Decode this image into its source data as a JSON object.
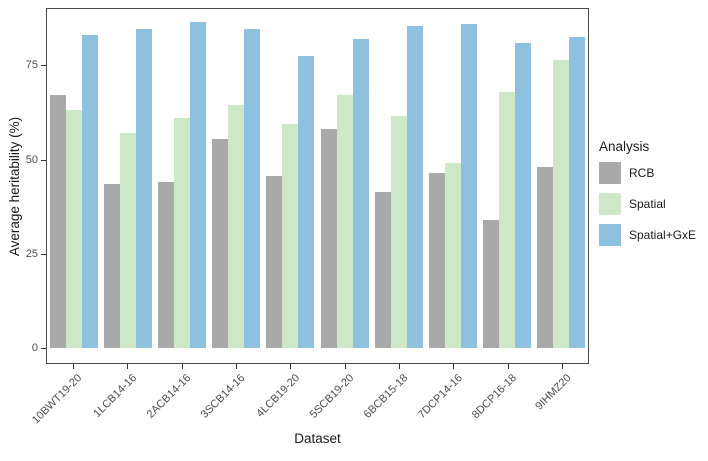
{
  "chart_data": {
    "type": "bar",
    "title": "",
    "xlabel": "Dataset",
    "ylabel": "Average heritability (%)",
    "legend_title": "Analysis",
    "legend_position": "right",
    "grid": false,
    "ylim": [
      0,
      90
    ],
    "y_ticks": [
      0,
      25,
      50,
      75
    ],
    "categories": [
      "10BWT19-20",
      "1LCB14-16",
      "2ACB14-16",
      "3SCB14-16",
      "4LCB19-20",
      "5SCB19-20",
      "6BCB15-18",
      "7DCP14-16",
      "8DCP16-18",
      "9IHMZ20"
    ],
    "series": [
      {
        "name": "RCB",
        "color": "#a9a9a9",
        "values": [
          67,
          43.5,
          44,
          55.5,
          45.5,
          58,
          41.5,
          46.5,
          34,
          48
        ]
      },
      {
        "name": "Spatial",
        "color": "#cde8c6",
        "values": [
          63,
          57,
          61,
          64.5,
          59.5,
          67,
          61.5,
          49,
          68,
          76.5
        ]
      },
      {
        "name": "Spatial+GxE",
        "color": "#8dc1de",
        "values": [
          83,
          84.5,
          86.5,
          84.5,
          77.5,
          82,
          85.5,
          86,
          81,
          82.5
        ]
      }
    ]
  },
  "style_colors": {
    "panel_border": "#4a4a4a",
    "tick_text": "#4d4d4d",
    "axis_title_text": "#1a1a1a",
    "background": "#ffffff"
  }
}
